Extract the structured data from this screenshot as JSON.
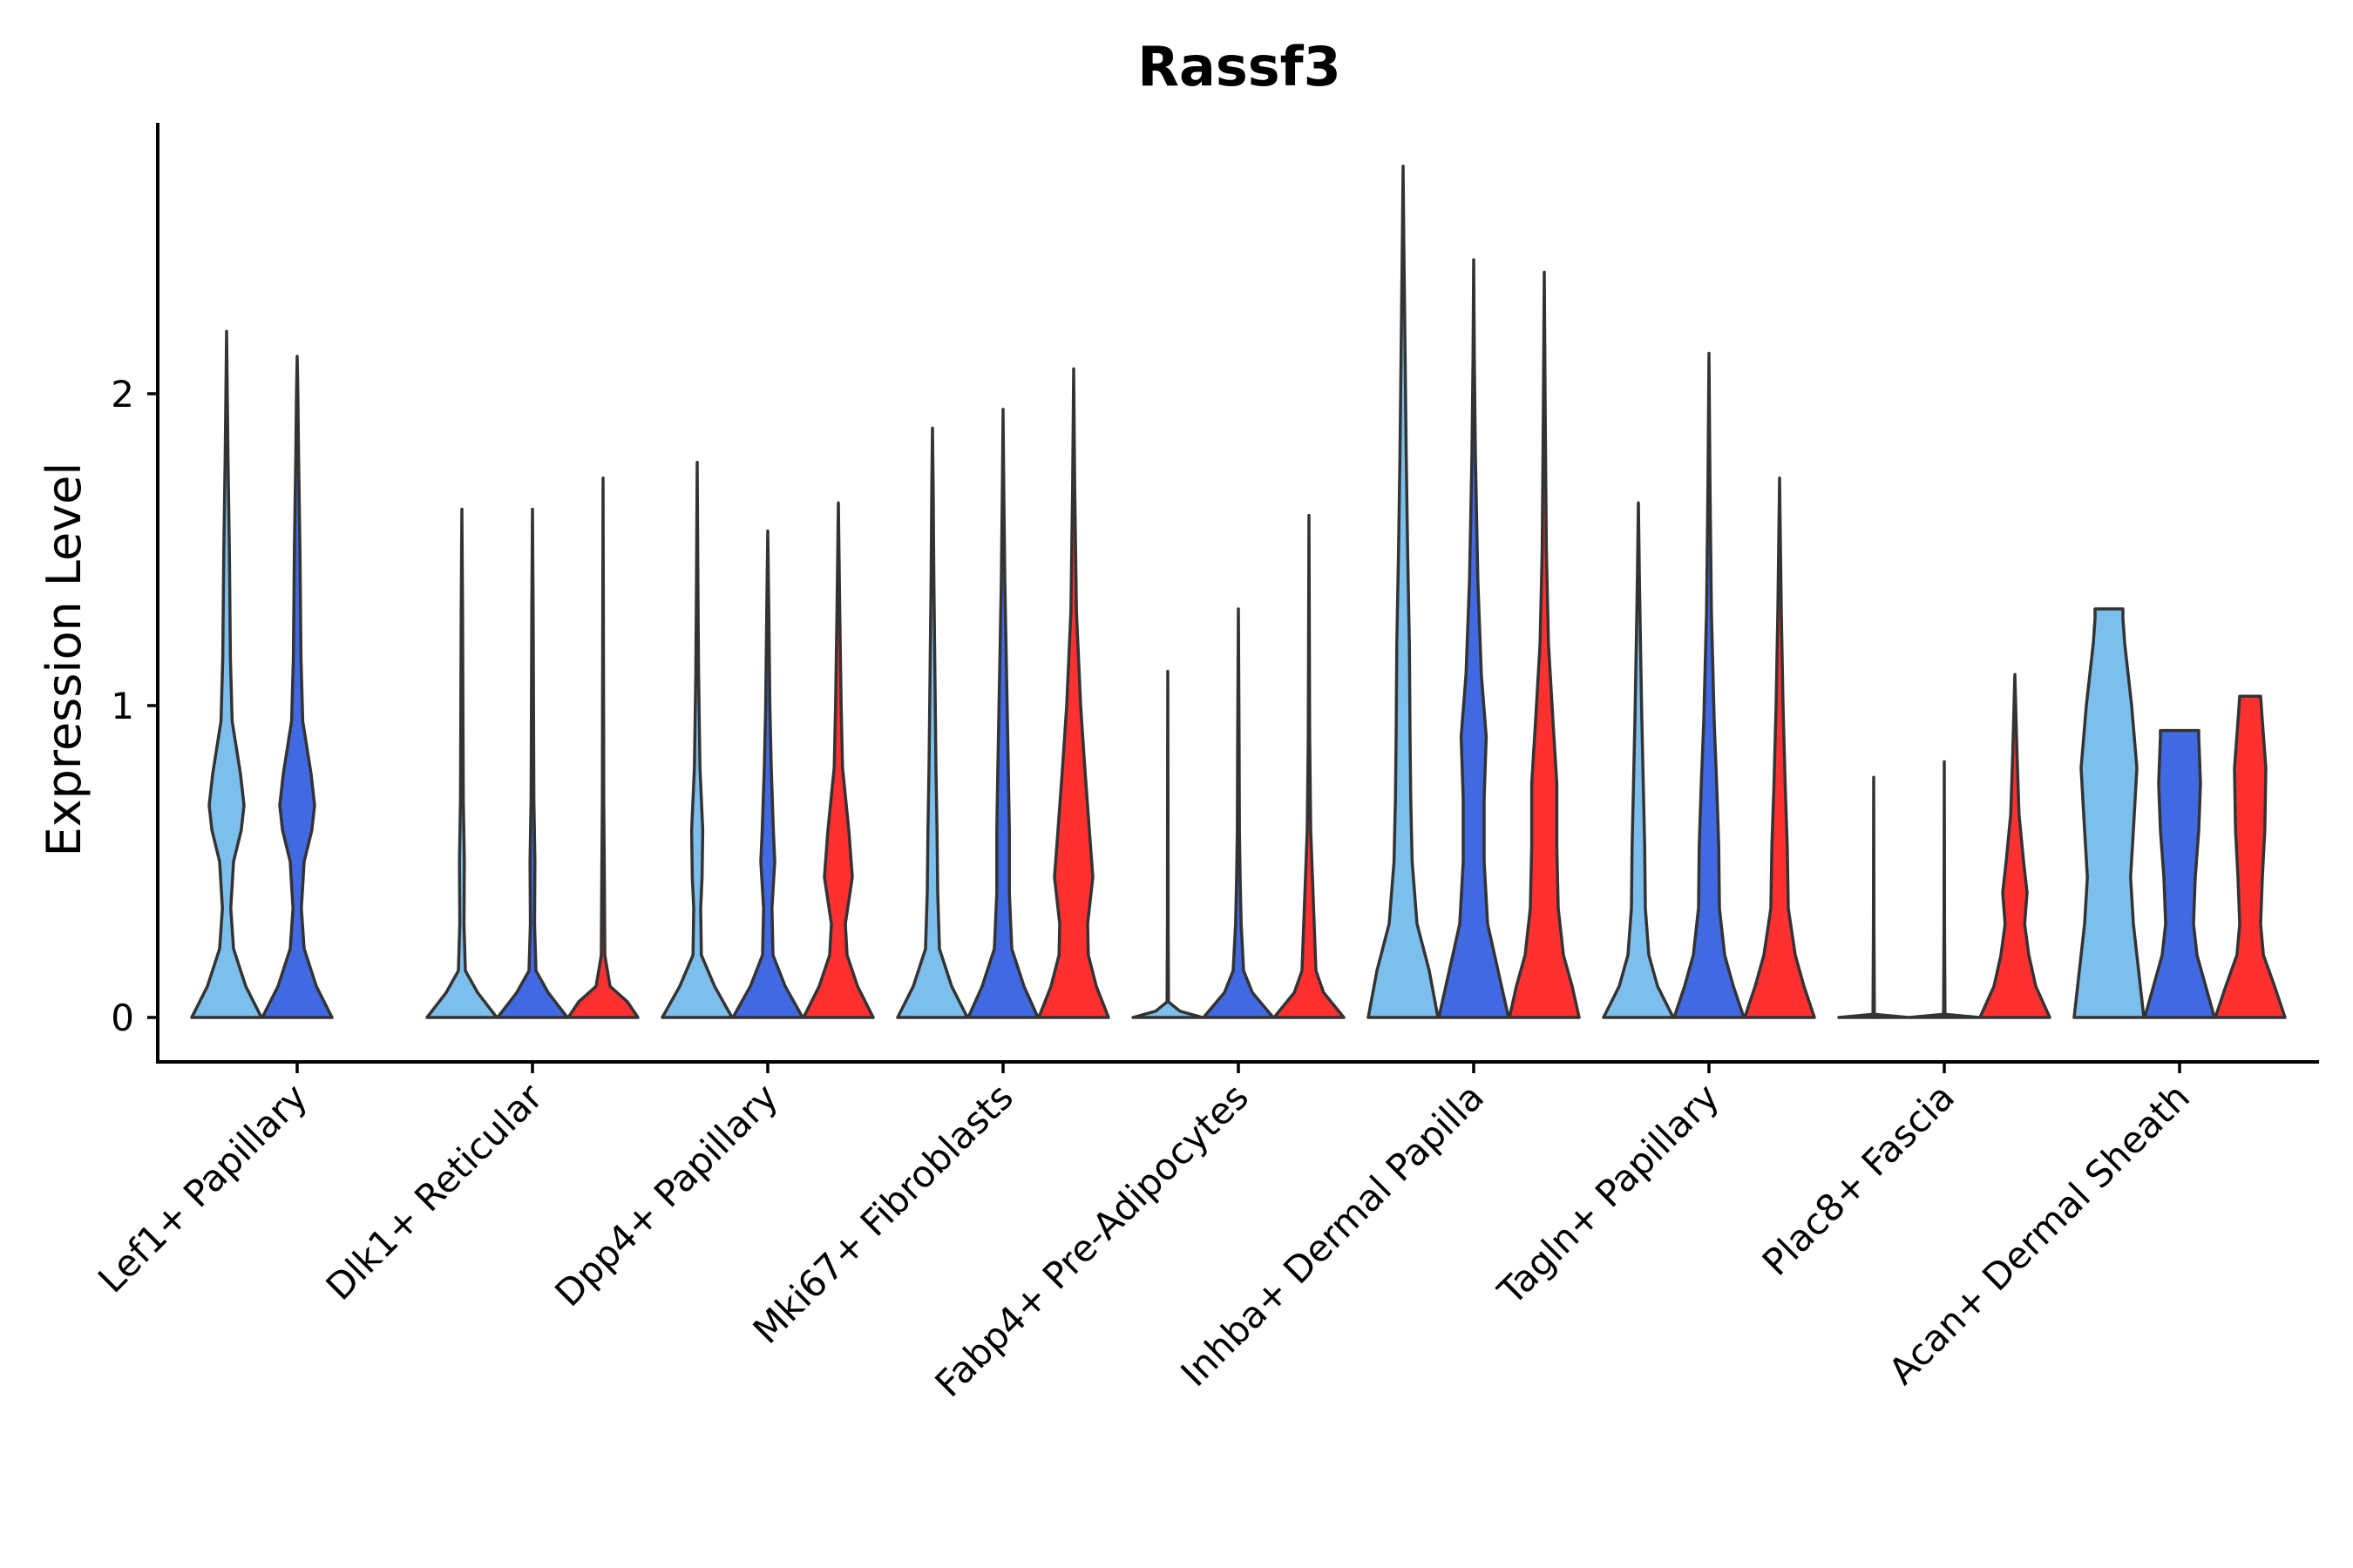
{
  "chart_data": {
    "type": "violin",
    "title": "Rassf3",
    "ylabel": "Expression Level",
    "xlabel": "",
    "ylim": [
      -0.14,
      2.9
    ],
    "yticks": [
      0,
      1,
      2
    ],
    "groups": [
      "group1",
      "group2",
      "group3"
    ],
    "colors": {
      "group1": "#7DBFEC",
      "group2": "#4169E1",
      "group3": "#FF3030",
      "outline": "#333333"
    },
    "categories": [
      "Lef1+ Papillary",
      "Dlk1+ Reticular",
      "Dpp4+ Papillary",
      "Mki67+ Fibroblasts",
      "Fabp4+ Pre-Adipocytes",
      "Inhba+ Dermal Papilla",
      "Tagln+ Papillary",
      "Plac8+ Fascia",
      "Acan+ Dermal Sheath"
    ],
    "violins": [
      {
        "category": 0,
        "group": "group1",
        "max": 2.2,
        "shape": [
          [
            0,
            1
          ],
          [
            0.1,
            0.55
          ],
          [
            0.22,
            0.2
          ],
          [
            0.35,
            0.12
          ],
          [
            0.5,
            0.2
          ],
          [
            0.6,
            0.42
          ],
          [
            0.68,
            0.5
          ],
          [
            0.78,
            0.4
          ],
          [
            0.95,
            0.16
          ],
          [
            1.15,
            0.11
          ],
          [
            1.5,
            0.08
          ],
          [
            1.8,
            0.04
          ],
          [
            2.0,
            0.02
          ],
          [
            2.2,
            0
          ]
        ]
      },
      {
        "category": 0,
        "group": "group2",
        "max": 2.12,
        "shape": [
          [
            0,
            1
          ],
          [
            0.1,
            0.55
          ],
          [
            0.22,
            0.2
          ],
          [
            0.35,
            0.12
          ],
          [
            0.5,
            0.2
          ],
          [
            0.6,
            0.42
          ],
          [
            0.68,
            0.5
          ],
          [
            0.78,
            0.4
          ],
          [
            0.95,
            0.16
          ],
          [
            1.15,
            0.11
          ],
          [
            1.5,
            0.08
          ],
          [
            1.8,
            0.04
          ],
          [
            2.0,
            0.02
          ],
          [
            2.12,
            0
          ]
        ]
      },
      {
        "category": 1,
        "group": "group1",
        "max": 1.63,
        "shape": [
          [
            0,
            1
          ],
          [
            0.08,
            0.45
          ],
          [
            0.15,
            0.1
          ],
          [
            0.3,
            0.06
          ],
          [
            0.5,
            0.07
          ],
          [
            0.7,
            0.04
          ],
          [
            1.0,
            0.03
          ],
          [
            1.3,
            0.02
          ],
          [
            1.63,
            0
          ]
        ]
      },
      {
        "category": 1,
        "group": "group2",
        "max": 1.63,
        "shape": [
          [
            0,
            1
          ],
          [
            0.08,
            0.45
          ],
          [
            0.15,
            0.1
          ],
          [
            0.3,
            0.06
          ],
          [
            0.5,
            0.07
          ],
          [
            0.7,
            0.04
          ],
          [
            1.0,
            0.03
          ],
          [
            1.3,
            0.02
          ],
          [
            1.63,
            0
          ]
        ]
      },
      {
        "category": 1,
        "group": "group3",
        "max": 1.73,
        "shape": [
          [
            0,
            1
          ],
          [
            0.05,
            0.7
          ],
          [
            0.1,
            0.2
          ],
          [
            0.2,
            0.05
          ],
          [
            0.4,
            0.04
          ],
          [
            0.7,
            0.02
          ],
          [
            1.0,
            0.015
          ],
          [
            1.73,
            0
          ]
        ]
      },
      {
        "category": 2,
        "group": "group1",
        "max": 1.78,
        "shape": [
          [
            0,
            1
          ],
          [
            0.1,
            0.5
          ],
          [
            0.2,
            0.12
          ],
          [
            0.35,
            0.1
          ],
          [
            0.45,
            0.14
          ],
          [
            0.6,
            0.16
          ],
          [
            0.8,
            0.08
          ],
          [
            1.1,
            0.04
          ],
          [
            1.4,
            0.02
          ],
          [
            1.78,
            0
          ]
        ]
      },
      {
        "category": 2,
        "group": "group2",
        "max": 1.56,
        "shape": [
          [
            0,
            1
          ],
          [
            0.1,
            0.5
          ],
          [
            0.2,
            0.15
          ],
          [
            0.35,
            0.12
          ],
          [
            0.5,
            0.2
          ],
          [
            0.6,
            0.16
          ],
          [
            0.8,
            0.1
          ],
          [
            1.0,
            0.06
          ],
          [
            1.3,
            0.03
          ],
          [
            1.56,
            0
          ]
        ]
      },
      {
        "category": 2,
        "group": "group3",
        "max": 1.65,
        "shape": [
          [
            0,
            1
          ],
          [
            0.1,
            0.55
          ],
          [
            0.2,
            0.25
          ],
          [
            0.3,
            0.2
          ],
          [
            0.45,
            0.4
          ],
          [
            0.6,
            0.3
          ],
          [
            0.8,
            0.12
          ],
          [
            1.0,
            0.08
          ],
          [
            1.3,
            0.04
          ],
          [
            1.65,
            0
          ]
        ]
      },
      {
        "category": 3,
        "group": "group1",
        "max": 1.89,
        "shape": [
          [
            0,
            1
          ],
          [
            0.1,
            0.55
          ],
          [
            0.22,
            0.2
          ],
          [
            0.4,
            0.15
          ],
          [
            0.6,
            0.13
          ],
          [
            0.8,
            0.1
          ],
          [
            1.1,
            0.07
          ],
          [
            1.4,
            0.04
          ],
          [
            1.7,
            0.02
          ],
          [
            1.89,
            0
          ]
        ]
      },
      {
        "category": 3,
        "group": "group2",
        "max": 1.95,
        "shape": [
          [
            0,
            1
          ],
          [
            0.1,
            0.6
          ],
          [
            0.22,
            0.25
          ],
          [
            0.4,
            0.18
          ],
          [
            0.6,
            0.18
          ],
          [
            0.8,
            0.15
          ],
          [
            1.1,
            0.1
          ],
          [
            1.4,
            0.05
          ],
          [
            1.7,
            0.02
          ],
          [
            1.95,
            0
          ]
        ]
      },
      {
        "category": 3,
        "group": "group3",
        "max": 2.08,
        "shape": [
          [
            0,
            1
          ],
          [
            0.1,
            0.65
          ],
          [
            0.2,
            0.42
          ],
          [
            0.3,
            0.4
          ],
          [
            0.45,
            0.55
          ],
          [
            0.6,
            0.45
          ],
          [
            0.8,
            0.32
          ],
          [
            1.0,
            0.2
          ],
          [
            1.3,
            0.08
          ],
          [
            1.7,
            0.03
          ],
          [
            2.08,
            0
          ]
        ]
      },
      {
        "category": 4,
        "group": "group1",
        "max": 1.11,
        "shape": [
          [
            0,
            1
          ],
          [
            0.02,
            0.35
          ],
          [
            0.05,
            0.02
          ],
          [
            0.3,
            0.01
          ],
          [
            0.6,
            0.008
          ],
          [
            1.11,
            0
          ]
        ]
      },
      {
        "category": 4,
        "group": "group2",
        "max": 1.31,
        "shape": [
          [
            0,
            1
          ],
          [
            0.08,
            0.4
          ],
          [
            0.15,
            0.15
          ],
          [
            0.3,
            0.08
          ],
          [
            0.45,
            0.05
          ],
          [
            0.6,
            0.03
          ],
          [
            0.9,
            0.02
          ],
          [
            1.31,
            0
          ]
        ]
      },
      {
        "category": 4,
        "group": "group3",
        "max": 1.61,
        "shape": [
          [
            0,
            1
          ],
          [
            0.08,
            0.42
          ],
          [
            0.15,
            0.2
          ],
          [
            0.3,
            0.15
          ],
          [
            0.45,
            0.1
          ],
          [
            0.6,
            0.05
          ],
          [
            0.9,
            0.02
          ],
          [
            1.61,
            0
          ]
        ]
      },
      {
        "category": 5,
        "group": "group1",
        "max": 2.73,
        "shape": [
          [
            0,
            1
          ],
          [
            0.15,
            0.75
          ],
          [
            0.3,
            0.4
          ],
          [
            0.5,
            0.26
          ],
          [
            0.7,
            0.22
          ],
          [
            0.9,
            0.2
          ],
          [
            1.2,
            0.18
          ],
          [
            1.5,
            0.13
          ],
          [
            1.8,
            0.09
          ],
          [
            2.2,
            0.05
          ],
          [
            2.5,
            0.02
          ],
          [
            2.73,
            0
          ]
        ]
      },
      {
        "category": 5,
        "group": "group2",
        "max": 2.43,
        "shape": [
          [
            0,
            1
          ],
          [
            0.1,
            0.8
          ],
          [
            0.2,
            0.6
          ],
          [
            0.3,
            0.4
          ],
          [
            0.5,
            0.3
          ],
          [
            0.7,
            0.3
          ],
          [
            0.9,
            0.36
          ],
          [
            1.1,
            0.22
          ],
          [
            1.4,
            0.12
          ],
          [
            1.8,
            0.05
          ],
          [
            2.1,
            0.02
          ],
          [
            2.43,
            0
          ]
        ]
      },
      {
        "category": 5,
        "group": "group3",
        "max": 2.39,
        "shape": [
          [
            0,
            1
          ],
          [
            0.1,
            0.8
          ],
          [
            0.2,
            0.55
          ],
          [
            0.35,
            0.4
          ],
          [
            0.55,
            0.36
          ],
          [
            0.75,
            0.36
          ],
          [
            0.95,
            0.25
          ],
          [
            1.2,
            0.12
          ],
          [
            1.5,
            0.06
          ],
          [
            1.9,
            0.03
          ],
          [
            2.39,
            0
          ]
        ]
      },
      {
        "category": 6,
        "group": "group1",
        "max": 1.65,
        "shape": [
          [
            0,
            1
          ],
          [
            0.1,
            0.55
          ],
          [
            0.2,
            0.3
          ],
          [
            0.35,
            0.2
          ],
          [
            0.55,
            0.18
          ],
          [
            0.75,
            0.14
          ],
          [
            0.95,
            0.1
          ],
          [
            1.2,
            0.06
          ],
          [
            1.4,
            0.03
          ],
          [
            1.65,
            0
          ]
        ]
      },
      {
        "category": 6,
        "group": "group2",
        "max": 2.13,
        "shape": [
          [
            0,
            1
          ],
          [
            0.1,
            0.7
          ],
          [
            0.2,
            0.45
          ],
          [
            0.35,
            0.3
          ],
          [
            0.55,
            0.28
          ],
          [
            0.75,
            0.22
          ],
          [
            0.95,
            0.15
          ],
          [
            1.3,
            0.07
          ],
          [
            1.7,
            0.03
          ],
          [
            2.13,
            0
          ]
        ]
      },
      {
        "category": 6,
        "group": "group3",
        "max": 1.73,
        "shape": [
          [
            0,
            1
          ],
          [
            0.1,
            0.7
          ],
          [
            0.2,
            0.45
          ],
          [
            0.35,
            0.25
          ],
          [
            0.55,
            0.22
          ],
          [
            0.75,
            0.16
          ],
          [
            1.0,
            0.1
          ],
          [
            1.3,
            0.05
          ],
          [
            1.73,
            0
          ]
        ]
      },
      {
        "category": 7,
        "group": "group1",
        "max": 0.77,
        "shape": [
          [
            0,
            1
          ],
          [
            0.01,
            0.02
          ],
          [
            0.3,
            0.008
          ],
          [
            0.77,
            0
          ]
        ]
      },
      {
        "category": 7,
        "group": "group2",
        "max": 0.82,
        "shape": [
          [
            0,
            1
          ],
          [
            0.01,
            0.02
          ],
          [
            0.3,
            0.008
          ],
          [
            0.82,
            0
          ]
        ]
      },
      {
        "category": 7,
        "group": "group3",
        "max": 1.1,
        "shape": [
          [
            0,
            1
          ],
          [
            0.1,
            0.6
          ],
          [
            0.2,
            0.4
          ],
          [
            0.3,
            0.28
          ],
          [
            0.4,
            0.35
          ],
          [
            0.5,
            0.25
          ],
          [
            0.65,
            0.12
          ],
          [
            0.85,
            0.06
          ],
          [
            1.1,
            0
          ]
        ]
      },
      {
        "category": 8,
        "group": "group1",
        "max": 1.31,
        "shape": [
          [
            0,
            1
          ],
          [
            0.15,
            0.85
          ],
          [
            0.3,
            0.7
          ],
          [
            0.45,
            0.62
          ],
          [
            0.6,
            0.7
          ],
          [
            0.8,
            0.8
          ],
          [
            1.0,
            0.65
          ],
          [
            1.2,
            0.45
          ],
          [
            1.28,
            0.4
          ],
          [
            1.31,
            0.4
          ]
        ]
      },
      {
        "category": 8,
        "group": "group2",
        "max": 0.92,
        "shape": [
          [
            0,
            1
          ],
          [
            0.1,
            0.75
          ],
          [
            0.2,
            0.5
          ],
          [
            0.3,
            0.4
          ],
          [
            0.45,
            0.45
          ],
          [
            0.6,
            0.55
          ],
          [
            0.75,
            0.6
          ],
          [
            0.9,
            0.55
          ],
          [
            0.92,
            0.55
          ]
        ]
      },
      {
        "category": 8,
        "group": "group3",
        "max": 1.03,
        "shape": [
          [
            0,
            1
          ],
          [
            0.1,
            0.7
          ],
          [
            0.2,
            0.38
          ],
          [
            0.3,
            0.3
          ],
          [
            0.45,
            0.35
          ],
          [
            0.6,
            0.42
          ],
          [
            0.8,
            0.45
          ],
          [
            0.95,
            0.35
          ],
          [
            1.03,
            0.3
          ]
        ]
      }
    ]
  }
}
